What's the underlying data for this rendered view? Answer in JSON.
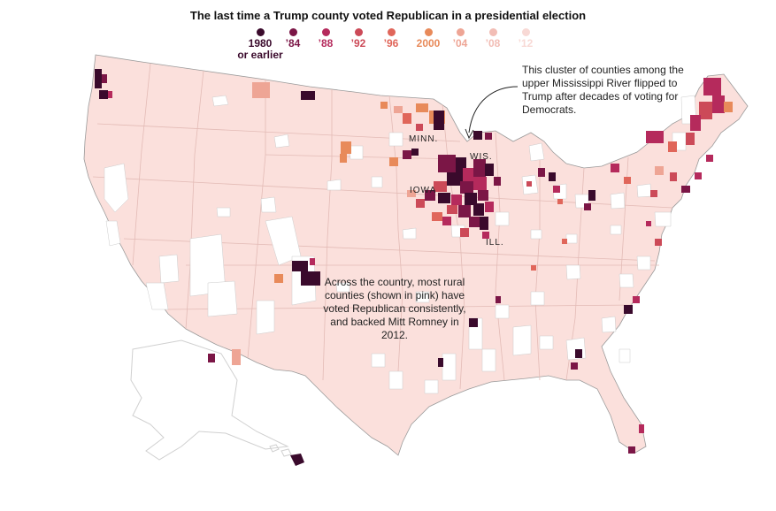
{
  "title": "The last time a Trump county voted Republican in a presidential election",
  "legend": [
    {
      "label": "1980",
      "sub": "or earlier",
      "color": "#3a0a2c"
    },
    {
      "label": "’84",
      "color": "#7b1646"
    },
    {
      "label": "’88",
      "color": "#b52a5c"
    },
    {
      "label": "’92",
      "color": "#cc4a58"
    },
    {
      "label": "’96",
      "color": "#e0665a"
    },
    {
      "label": "2000",
      "color": "#e88a5a"
    },
    {
      "label": "’04",
      "color": "#eea595"
    },
    {
      "label": "’08",
      "color": "#f2bdb5"
    },
    {
      "label": "’12",
      "color": "#f8d9d5"
    }
  ],
  "colors": {
    "base_pink": "#fbe0dc",
    "state_border": "#e3bbb6",
    "coast": "#9a9a9a"
  },
  "annotations": {
    "mississippi": "This cluster of counties among the upper Mississippi River flipped to Trump after decades of voting for Democrats.",
    "rural": "Across the country, most rural counties (shown in pink) have voted Republican consistently, and backed Mitt Romney in 2012."
  },
  "state_labels": {
    "minn": "MINN.",
    "wis": "WIS.",
    "iowa": "IOWA",
    "ill": "ILL."
  }
}
